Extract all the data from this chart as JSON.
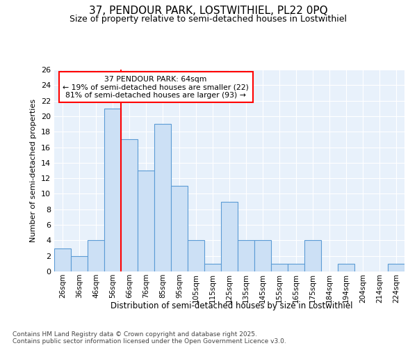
{
  "title_line1": "37, PENDOUR PARK, LOSTWITHIEL, PL22 0PQ",
  "title_line2": "Size of property relative to semi-detached houses in Lostwithiel",
  "xlabel": "Distribution of semi-detached houses by size in Lostwithiel",
  "ylabel": "Number of semi-detached properties",
  "categories": [
    "26sqm",
    "36sqm",
    "46sqm",
    "56sqm",
    "66sqm",
    "76sqm",
    "85sqm",
    "95sqm",
    "105sqm",
    "115sqm",
    "125sqm",
    "135sqm",
    "145sqm",
    "155sqm",
    "165sqm",
    "175sqm",
    "184sqm",
    "194sqm",
    "204sqm",
    "214sqm",
    "224sqm"
  ],
  "values": [
    3,
    2,
    4,
    21,
    17,
    13,
    19,
    11,
    4,
    1,
    9,
    4,
    4,
    1,
    1,
    4,
    0,
    1,
    0,
    0,
    1
  ],
  "bar_color": "#cce0f5",
  "bar_edge_color": "#5b9bd5",
  "property_line_index": 3.5,
  "property_size": "64sqm",
  "pct_smaller": 19,
  "pct_larger": 81,
  "n_smaller": 22,
  "n_larger": 93,
  "ylim": [
    0,
    26
  ],
  "yticks": [
    0,
    2,
    4,
    6,
    8,
    10,
    12,
    14,
    16,
    18,
    20,
    22,
    24,
    26
  ],
  "background_color": "#e8f1fb",
  "grid_color": "#ffffff",
  "footer_line1": "Contains HM Land Registry data © Crown copyright and database right 2025.",
  "footer_line2": "Contains public sector information licensed under the Open Government Licence v3.0."
}
